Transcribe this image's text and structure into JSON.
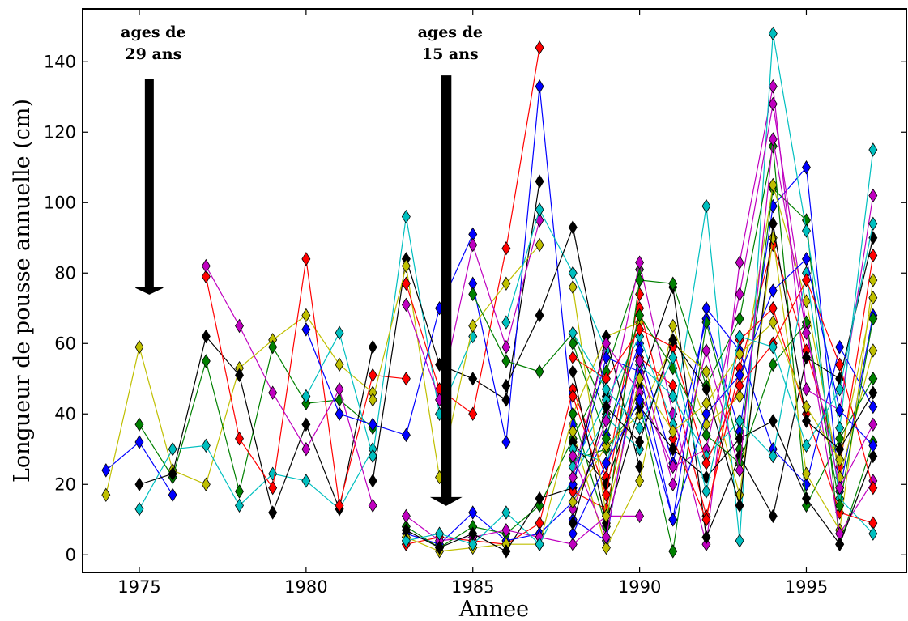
{
  "chart_data": {
    "type": "line",
    "title": "",
    "xlabel": "Annee",
    "ylabel": "Longueur de pousse annuelle (cm)",
    "xlim": [
      1973.3,
      1998.0
    ],
    "ylim": [
      -5,
      155
    ],
    "xticks": [
      1975,
      1980,
      1985,
      1990,
      1995
    ],
    "yticks": [
      0,
      20,
      40,
      60,
      80,
      100,
      120,
      140
    ],
    "grid": false,
    "marker": "diamond",
    "annotations": [
      {
        "lines": [
          "ages de",
          "29 ans"
        ],
        "arrow_x": 1975.3,
        "arrow_from": 135,
        "arrow_to": 74
      },
      {
        "lines": [
          "ages de",
          "15 ans"
        ],
        "arrow_x": 1984.2,
        "arrow_from": 136,
        "arrow_to": 14
      }
    ],
    "series": [
      {
        "color": "#0000ff",
        "x": [
          1974,
          1975,
          1976
        ],
        "y": [
          24,
          32,
          17
        ]
      },
      {
        "color": "#bfbf00",
        "x": [
          1974,
          1975,
          1976,
          1977,
          1978,
          1979,
          1980,
          1981,
          1982
        ],
        "y": [
          17,
          59,
          24,
          20,
          53,
          61,
          68,
          54,
          46
        ]
      },
      {
        "color": "#00bfbf",
        "x": [
          1975,
          1976,
          1977,
          1978,
          1979,
          1980,
          1981,
          1982
        ],
        "y": [
          13,
          30,
          31,
          14,
          23,
          21,
          13,
          30
        ]
      },
      {
        "color": "#008000",
        "x": [
          1975,
          1976,
          1977,
          1978,
          1979,
          1980,
          1981,
          1982
        ],
        "y": [
          37,
          22,
          55,
          18,
          59,
          43,
          44,
          36
        ]
      },
      {
        "color": "#000000",
        "x": [
          1975,
          1976,
          1977,
          1978,
          1979,
          1980,
          1981,
          1982
        ],
        "y": [
          20,
          23,
          62,
          51,
          12,
          37,
          13,
          59
        ]
      },
      {
        "color": "#ff0000",
        "x": [
          1977,
          1978,
          1979,
          1980,
          1981,
          1982,
          1983
        ],
        "y": [
          79,
          33,
          19,
          84,
          14,
          51,
          50
        ]
      },
      {
        "color": "#bf00bf",
        "x": [
          1977,
          1978,
          1979,
          1980,
          1981,
          1982
        ],
        "y": [
          82,
          65,
          46,
          30,
          47,
          14
        ]
      },
      {
        "color": "#00bfbf",
        "x": [
          1980,
          1981,
          1982,
          1983,
          1984,
          1985
        ],
        "y": [
          45,
          63,
          28,
          96,
          40,
          62
        ]
      },
      {
        "color": "#0000ff",
        "x": [
          1980,
          1981,
          1982,
          1983,
          1984,
          1985
        ],
        "y": [
          64,
          40,
          37,
          34,
          70,
          91
        ]
      },
      {
        "color": "#000000",
        "x": [
          1982,
          1983,
          1984,
          1985,
          1986,
          1987
        ],
        "y": [
          21,
          84,
          54,
          50,
          44,
          106
        ]
      },
      {
        "color": "#bfbf00",
        "x": [
          1982,
          1983,
          1984,
          1985,
          1986,
          1987
        ],
        "y": [
          44,
          82,
          22,
          65,
          77,
          88
        ]
      },
      {
        "color": "#ff0000",
        "x": [
          1983,
          1984,
          1985,
          1986,
          1987
        ],
        "y": [
          77,
          47,
          40,
          87,
          144
        ]
      },
      {
        "color": "#0000ff",
        "x": [
          1985,
          1986,
          1987,
          1988
        ],
        "y": [
          77,
          32,
          133,
          37
        ]
      },
      {
        "color": "#bf00bf",
        "x": [
          1983,
          1984,
          1985,
          1986,
          1987
        ],
        "y": [
          71,
          44,
          88,
          59,
          95
        ]
      },
      {
        "color": "#00bfbf",
        "x": [
          1986,
          1987,
          1988,
          1989
        ],
        "y": [
          66,
          98,
          80,
          58
        ]
      },
      {
        "color": "#008000",
        "x": [
          1985,
          1986,
          1987,
          1988,
          1989
        ],
        "y": [
          74,
          55,
          52,
          63,
          40
        ]
      },
      {
        "color": "#000000",
        "x": [
          1986,
          1987,
          1988,
          1989
        ],
        "y": [
          48,
          68,
          93,
          45
        ]
      },
      {
        "color": "#ff0000",
        "x": [
          1983,
          1984,
          1985,
          1986,
          1987,
          1988,
          1989,
          1990
        ],
        "y": [
          3,
          5,
          4,
          3,
          9,
          47,
          22,
          74
        ]
      },
      {
        "color": "#0000ff",
        "x": [
          1983,
          1984,
          1985,
          1986,
          1987,
          1988,
          1989,
          1990
        ],
        "y": [
          6,
          3,
          12,
          4,
          6,
          15,
          34,
          60
        ]
      },
      {
        "color": "#008000",
        "x": [
          1983,
          1984,
          1985,
          1986,
          1987,
          1988,
          1989,
          1990
        ],
        "y": [
          8,
          2,
          8,
          6,
          14,
          33,
          52,
          81
        ]
      },
      {
        "color": "#bfbf00",
        "x": [
          1983,
          1984,
          1985,
          1986,
          1987,
          1988,
          1989,
          1990
        ],
        "y": [
          5,
          1,
          2,
          3,
          3,
          40,
          62,
          66
        ]
      },
      {
        "color": "#bf00bf",
        "x": [
          1983,
          1984,
          1985,
          1986,
          1987,
          1988,
          1989,
          1990
        ],
        "y": [
          11,
          4,
          5,
          7,
          5,
          3,
          11,
          11
        ]
      },
      {
        "color": "#00bfbf",
        "x": [
          1983,
          1984,
          1985,
          1986,
          1987,
          1988,
          1989,
          1990
        ],
        "y": [
          4,
          6,
          3,
          12,
          3,
          22,
          39,
          30
        ]
      },
      {
        "color": "#000000",
        "x": [
          1983,
          1984,
          1985,
          1986,
          1987,
          1988,
          1989,
          1990
        ],
        "y": [
          7,
          2,
          6,
          1,
          16,
          19,
          62,
          25
        ]
      },
      {
        "color": "#ff0000",
        "x": [
          1988,
          1989,
          1990,
          1991,
          1992,
          1993,
          1994,
          1995,
          1996,
          1997
        ],
        "y": [
          18,
          13,
          56,
          48,
          11,
          53,
          88,
          58,
          25,
          85
        ]
      },
      {
        "color": "#0000ff",
        "x": [
          1988,
          1989,
          1990,
          1991,
          1992,
          1993,
          1994,
          1995,
          1996,
          1997
        ],
        "y": [
          10,
          4,
          58,
          26,
          67,
          35,
          99,
          110,
          18,
          68
        ]
      },
      {
        "color": "#008000",
        "x": [
          1988,
          1989,
          1990,
          1991,
          1992,
          1993,
          1994,
          1995,
          1996,
          1997
        ],
        "y": [
          27,
          30,
          43,
          1,
          66,
          30,
          104,
          95,
          3,
          32
        ]
      },
      {
        "color": "#bfbf00",
        "x": [
          1988,
          1989,
          1990,
          1991,
          1992,
          1993,
          1994,
          1995,
          1996,
          1997
        ],
        "y": [
          35,
          2,
          21,
          65,
          37,
          45,
          105,
          72,
          22,
          58
        ]
      },
      {
        "color": "#bf00bf",
        "x": [
          1988,
          1989,
          1990,
          1991,
          1992,
          1993,
          1994,
          1995,
          1996,
          1997
        ],
        "y": [
          13,
          38,
          83,
          40,
          3,
          83,
          133,
          47,
          41,
          102
        ]
      },
      {
        "color": "#00bfbf",
        "x": [
          1988,
          1989,
          1990,
          1991,
          1992,
          1993,
          1994,
          1995,
          1996,
          1997
        ],
        "y": [
          25,
          44,
          62,
          37,
          99,
          4,
          148,
          92,
          36,
          115
        ]
      },
      {
        "color": "#000000",
        "x": [
          1988,
          1989,
          1990,
          1991,
          1992,
          1993,
          1994,
          1995,
          1996,
          1997
        ],
        "y": [
          32,
          20,
          48,
          76,
          5,
          28,
          11,
          56,
          50,
          90
        ]
      },
      {
        "color": "#ff0000",
        "x": [
          1988,
          1989,
          1990,
          1991,
          1992,
          1993,
          1994,
          1995,
          1996,
          1997
        ],
        "y": [
          45,
          17,
          70,
          33,
          10,
          61,
          70,
          40,
          12,
          9
        ]
      },
      {
        "color": "#0000ff",
        "x": [
          1988,
          1989,
          1990,
          1991,
          1992,
          1993,
          1994,
          1995,
          1996,
          1997
        ],
        "y": [
          20,
          56,
          52,
          10,
          70,
          58,
          30,
          20,
          59,
          42
        ]
      },
      {
        "color": "#008000",
        "x": [
          1988,
          1989,
          1990,
          1991,
          1992,
          1993,
          1994,
          1995,
          1996,
          1997
        ],
        "y": [
          40,
          8,
          78,
          77,
          48,
          67,
          116,
          14,
          33,
          50
        ]
      },
      {
        "color": "#bfbf00",
        "x": [
          1988,
          1989,
          1990,
          1991,
          1992,
          1993,
          1994,
          1995,
          1996,
          1997
        ],
        "y": [
          15,
          31,
          40,
          60,
          52,
          17,
          90,
          23,
          7,
          78
        ]
      },
      {
        "color": "#bf00bf",
        "x": [
          1988,
          1989,
          1990,
          1991,
          1992,
          1993,
          1994,
          1995,
          1996,
          1997
        ],
        "y": [
          22,
          60,
          46,
          25,
          30,
          74,
          128,
          65,
          6,
          21
        ]
      },
      {
        "color": "#00bfbf",
        "x": [
          1988,
          1989,
          1990,
          1991,
          1992,
          1993,
          1994,
          1995,
          1996,
          1997
        ],
        "y": [
          30,
          26,
          54,
          45,
          28,
          38,
          28,
          80,
          16,
          6
        ]
      },
      {
        "color": "#000000",
        "x": [
          1988,
          1989,
          1990,
          1991,
          1992,
          1993,
          1994,
          1995,
          1996,
          1997
        ],
        "y": [
          52,
          9,
          42,
          30,
          22,
          33,
          38,
          16,
          3,
          28
        ]
      },
      {
        "color": "#ff0000",
        "x": [
          1988,
          1989,
          1990,
          1991,
          1992,
          1993,
          1994,
          1995,
          1996,
          1997
        ],
        "y": [
          56,
          50,
          64,
          59,
          26,
          48,
          60,
          78,
          54,
          19
        ]
      },
      {
        "color": "#0000ff",
        "x": [
          1988,
          1989,
          1990,
          1991,
          1992,
          1993,
          1994,
          1995,
          1996,
          1997
        ],
        "y": [
          6,
          26,
          44,
          10,
          40,
          51,
          75,
          84,
          41,
          31
        ]
      },
      {
        "color": "#008000",
        "x": [
          1988,
          1989,
          1990,
          1991,
          1992,
          1993,
          1994,
          1995,
          1996,
          1997
        ],
        "y": [
          60,
          33,
          68,
          53,
          34,
          26,
          54,
          66,
          14,
          67
        ]
      },
      {
        "color": "#bfbf00",
        "x": [
          1988,
          1989,
          1990,
          1991,
          1992,
          1993,
          1994,
          1995,
          1996,
          1997
        ],
        "y": [
          76,
          11,
          50,
          35,
          43,
          57,
          66,
          42,
          27,
          73
        ]
      },
      {
        "color": "#bf00bf",
        "x": [
          1988,
          1989,
          1990,
          1991,
          1992,
          1993,
          1994,
          1995,
          1996,
          1997
        ],
        "y": [
          28,
          5,
          55,
          20,
          58,
          24,
          118,
          63,
          19,
          37
        ]
      },
      {
        "color": "#00bfbf",
        "x": [
          1988,
          1989,
          1990,
          1991,
          1992,
          1993,
          1994,
          1995,
          1996,
          1997
        ],
        "y": [
          63,
          47,
          36,
          56,
          18,
          62,
          59,
          31,
          47,
          94
        ]
      },
      {
        "color": "#000000",
        "x": [
          1988,
          1989,
          1990,
          1991,
          1992,
          1993,
          1994,
          1995,
          1996,
          1997
        ],
        "y": [
          9,
          42,
          32,
          61,
          47,
          14,
          94,
          38,
          30,
          46
        ]
      }
    ]
  }
}
